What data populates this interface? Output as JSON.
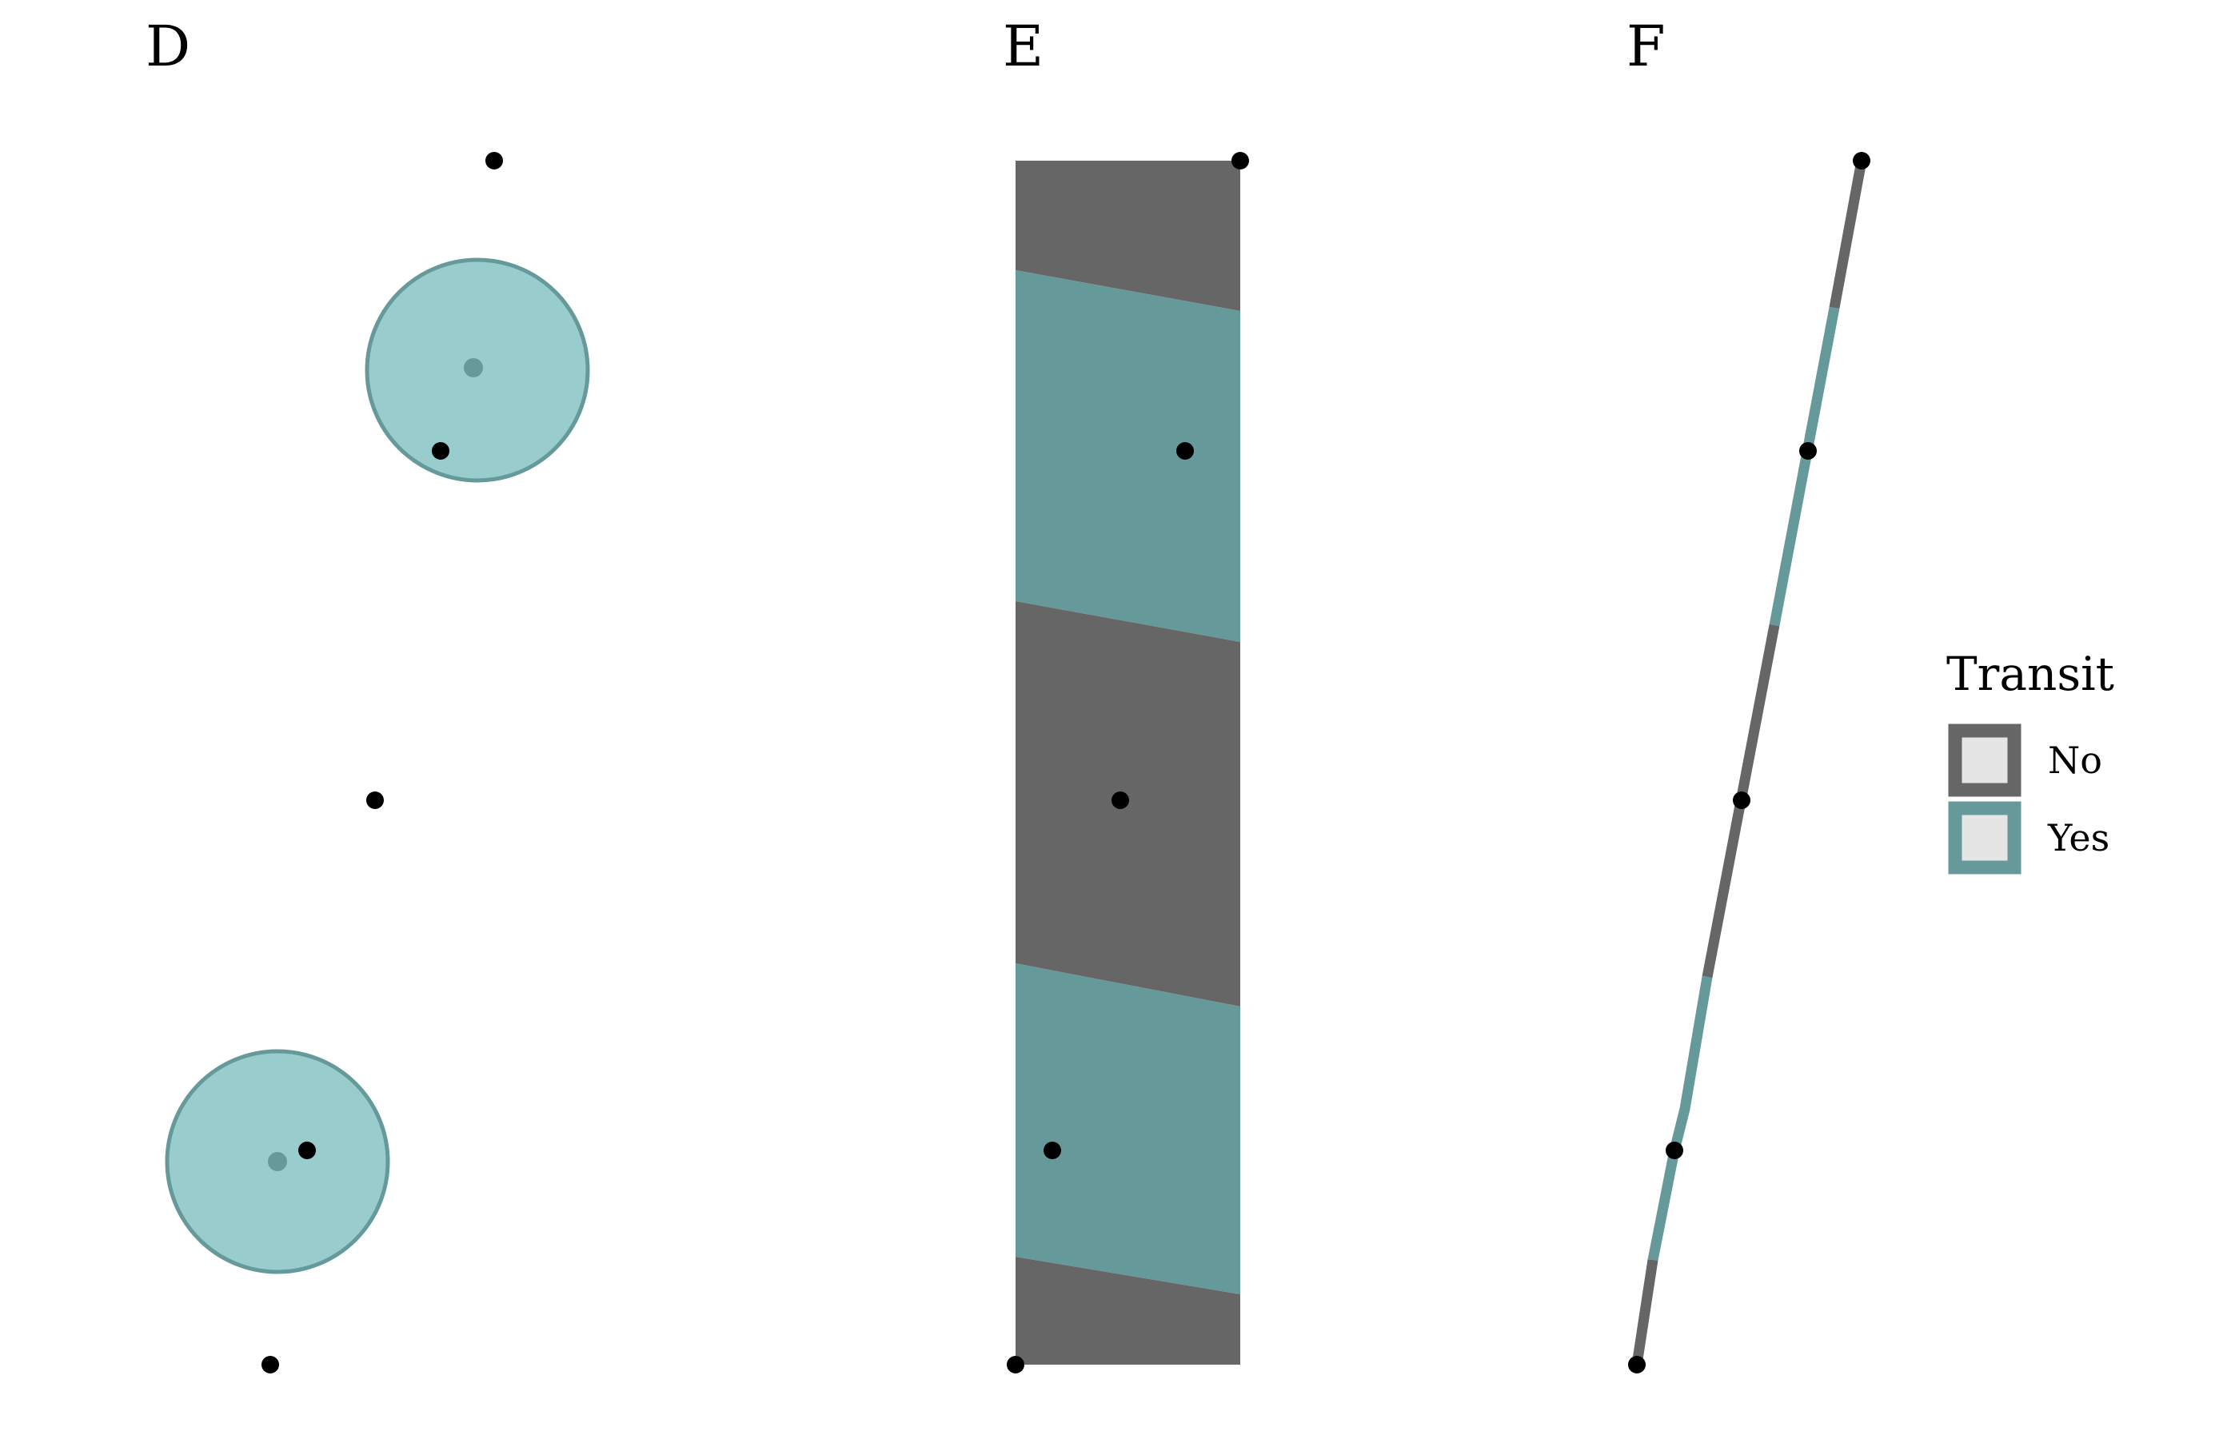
{
  "panels": {
    "d": {
      "label": "D"
    },
    "e": {
      "label": "E"
    },
    "f": {
      "label": "F"
    }
  },
  "legend": {
    "title": "Transit",
    "items": [
      {
        "label": "No",
        "color": "#666666"
      },
      {
        "label": "Yes",
        "color": "#66999A"
      }
    ]
  },
  "colors": {
    "no": "#666666",
    "yes": "#66999A",
    "yes_fill_light": "#99CCCC",
    "point": "#000000",
    "legend_key_fill": "#E5E5E5"
  }
}
